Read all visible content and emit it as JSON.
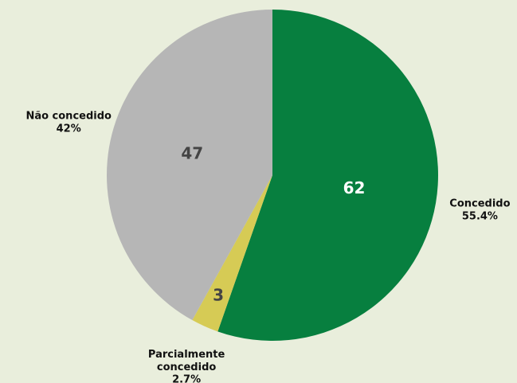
{
  "chart_data": {
    "type": "pie",
    "categories": [
      "Concedido",
      "Parcialmente concedido",
      "Não concedido"
    ],
    "values": [
      62,
      3,
      47
    ],
    "percentages": [
      {
        "value": 55.4,
        "label": "55.4%"
      },
      {
        "value": 2.7,
        "label": "2.7%"
      },
      {
        "value": 42,
        "label": "42%"
      }
    ],
    "colors": [
      "#077f3f",
      "#d6cb55",
      "#b6b6b6"
    ]
  }
}
